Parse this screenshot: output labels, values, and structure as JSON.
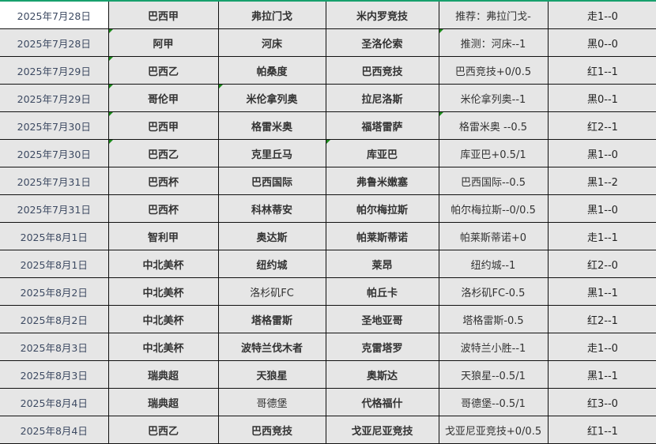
{
  "colors": {
    "accent": "#17a06d",
    "marker": "#1a8a1a"
  },
  "rows": [
    {
      "date": "2025年7月28日",
      "league": "巴西甲",
      "home": "弗拉门戈",
      "away": "米内罗竞技",
      "prediction": "推荐：弗拉门戈-",
      "result": "走1--0"
    },
    {
      "date": "2025年7月28日",
      "league": "阿甲",
      "home": "河床",
      "away": "圣洛伦索",
      "prediction": "推测：河床--1",
      "result": "黑0--0"
    },
    {
      "date": "2025年7月29日",
      "league": "巴西乙",
      "home": "帕桑度",
      "away": "巴西竞技",
      "prediction": "巴西竞技+0/0.5",
      "result": "红1--1"
    },
    {
      "date": "2025年7月29日",
      "league": "哥伦甲",
      "home": "米伦拿列奥",
      "away": "拉尼洛斯",
      "prediction": "米伦拿列奥--1",
      "result": "黑0--1"
    },
    {
      "date": "2025年7月30日",
      "league": "巴西甲",
      "home": "格雷米奥",
      "away": "福塔雷萨",
      "prediction": "格雷米奥  --0.5",
      "result": "红2--1"
    },
    {
      "date": "2025年7月30日",
      "league": "巴西乙",
      "home": "克里丘马",
      "away": "库亚巴",
      "prediction": "库亚巴+0.5/1",
      "result": "黑1--0"
    },
    {
      "date": "2025年7月31日",
      "league": "巴西杯",
      "home": "巴西国际",
      "away": "弗鲁米嫩塞",
      "prediction": "巴西国际--0.5",
      "result": "黑1--2"
    },
    {
      "date": "2025年7月31日",
      "league": "巴西杯",
      "home": "科林蒂安",
      "away": "帕尔梅拉斯",
      "prediction": "帕尔梅拉斯--0/0.5",
      "result": "黑1--0"
    },
    {
      "date": "2025年8月1日",
      "league": "智利甲",
      "home": "奥达斯",
      "away": "帕莱斯蒂诺",
      "prediction": "帕莱斯蒂诺+0",
      "result": "走1--1"
    },
    {
      "date": "2025年8月1日",
      "league": "中北美杯",
      "home": "纽约城",
      "away": "莱昂",
      "prediction": "纽约城--1",
      "result": "红2--0"
    },
    {
      "date": "2025年8月2日",
      "league": "中北美杯",
      "home": "洛杉矶FC",
      "away": "帕丘卡",
      "prediction": "洛杉矶FC-0.5",
      "result": "黑1--1"
    },
    {
      "date": "2025年8月2日",
      "league": "中北美杯",
      "home": "塔格雷斯",
      "away": "圣地亚哥",
      "prediction": "塔格雷斯-0.5",
      "result": "红2--1"
    },
    {
      "date": "2025年8月3日",
      "league": "中北美杯",
      "home": "波特兰伐木者",
      "away": "克雷塔罗",
      "prediction": "波特兰小胜--1",
      "result": "走1--0"
    },
    {
      "date": "2025年8月3日",
      "league": "瑞典超",
      "home": "天狼星",
      "away": "奥斯达",
      "prediction": "天狼星--0.5/1",
      "result": "黑1--1"
    },
    {
      "date": "2025年8月4日",
      "league": "瑞典超",
      "home": "哥德堡",
      "away": "代格福什",
      "prediction": "哥德堡--0.5/1",
      "result": "红3--0"
    },
    {
      "date": "2025年8月4日",
      "league": "巴西乙",
      "home": "巴西竞技",
      "away": "戈亚尼亚竞技",
      "prediction": "戈亚尼亚竞技+0/0.5",
      "result": "红1--1"
    }
  ]
}
